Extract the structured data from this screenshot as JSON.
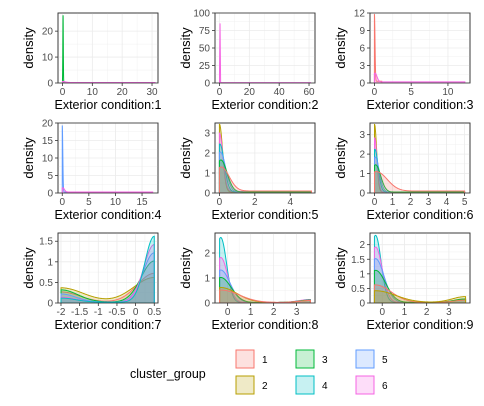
{
  "legend": {
    "title": "cluster_group",
    "items": [
      {
        "label": "1",
        "color": "#F8766D"
      },
      {
        "label": "2",
        "color": "#B79F00"
      },
      {
        "label": "3",
        "color": "#00BA38"
      },
      {
        "label": "4",
        "color": "#00BFC4"
      },
      {
        "label": "5",
        "color": "#619CFF"
      },
      {
        "label": "6",
        "color": "#F564E3"
      }
    ]
  },
  "chart_data": [
    {
      "type": "area",
      "xlabel": "Exterior condition:1",
      "ylabel": "density",
      "xlim": [
        -1.5,
        32
      ],
      "ylim": [
        0,
        27
      ],
      "xticks": [
        0,
        10,
        20,
        30
      ],
      "yticks": [
        0,
        10,
        20
      ],
      "grid": true,
      "series": [
        {
          "group": "3",
          "peak": 26,
          "x0": 0.2,
          "w": 0.08,
          "base": 0.1,
          "xmax": 1
        },
        {
          "group": "6",
          "peak": 0.4,
          "x0": 0,
          "w": 1,
          "base": 0.2,
          "xmax": 31
        }
      ]
    },
    {
      "type": "area",
      "xlabel": "Exterior condition:2",
      "ylabel": "density",
      "xlim": [
        -3,
        64
      ],
      "ylim": [
        0,
        100
      ],
      "xticks": [
        0,
        20,
        40,
        60
      ],
      "yticks": [
        0,
        25,
        50,
        75,
        100
      ],
      "grid": true,
      "series": [
        {
          "group": "6",
          "peak": 98,
          "x0": 0.3,
          "w": 0.15,
          "base": 0.5,
          "xmax": 61
        }
      ]
    },
    {
      "type": "area",
      "xlabel": "Exterior condition:3",
      "ylabel": "density",
      "xlim": [
        -0.6,
        13
      ],
      "ylim": [
        0,
        12
      ],
      "xticks": [
        0,
        5,
        10
      ],
      "yticks": [
        0,
        3,
        6,
        9,
        12
      ],
      "grid": true,
      "series": [
        {
          "group": "1",
          "peak": 11.5,
          "x0": 0,
          "w": 0.08,
          "base": 0.3,
          "xmax": 1
        },
        {
          "group": "6",
          "peak": 1.5,
          "x0": 0.1,
          "w": 0.25,
          "base": 0.2,
          "xmax": 12.3
        }
      ]
    },
    {
      "type": "area",
      "xlabel": "Exterior condition:4",
      "ylabel": "density",
      "xlim": [
        -0.8,
        18
      ],
      "ylim": [
        0,
        20
      ],
      "xticks": [
        0,
        5,
        10,
        15
      ],
      "yticks": [
        0,
        5,
        10,
        15,
        20
      ],
      "grid": true,
      "series": [
        {
          "group": "5",
          "peak": 19,
          "x0": 0,
          "w": 0.1,
          "base": 0.3,
          "xmax": 1
        },
        {
          "group": "6",
          "peak": 1.2,
          "x0": 0.1,
          "w": 0.3,
          "base": 0.3,
          "xmax": 17
        }
      ]
    },
    {
      "type": "area",
      "xlabel": "Exterior condition:5",
      "ylabel": "density",
      "xlim": [
        -0.25,
        5.4
      ],
      "ylim": [
        0,
        3.5
      ],
      "xticks": [
        0,
        2,
        4
      ],
      "yticks": [
        0,
        1,
        2,
        3
      ],
      "grid": true,
      "series": [
        {
          "group": "2",
          "peak": 3.4,
          "x0": 0,
          "w": 0.18,
          "base": 0.05,
          "xmax": 5.2
        },
        {
          "group": "6",
          "peak": 2.9,
          "x0": 0,
          "w": 0.2,
          "base": 0.08,
          "xmax": 5.2
        },
        {
          "group": "4",
          "peak": 2.4,
          "x0": 0.02,
          "w": 0.25,
          "base": 0.05,
          "xmax": 5.2
        },
        {
          "group": "5",
          "peak": 2.0,
          "x0": 0.05,
          "w": 0.3,
          "base": 0.05,
          "xmax": 5.2
        },
        {
          "group": "3",
          "peak": 1.6,
          "x0": 0.08,
          "w": 0.35,
          "base": 0.05,
          "xmax": 5.2
        },
        {
          "group": "1",
          "peak": 1.2,
          "x0": 0.1,
          "w": 0.45,
          "base": 0.1,
          "xmax": 5.2
        }
      ]
    },
    {
      "type": "area",
      "xlabel": "Exterior condition:6",
      "ylabel": "density",
      "xlim": [
        -0.25,
        5.3
      ],
      "ylim": [
        0,
        3.6
      ],
      "xticks": [
        0,
        1,
        2,
        3,
        4,
        5
      ],
      "yticks": [
        0,
        1,
        2,
        3
      ],
      "grid": true,
      "series": [
        {
          "group": "2",
          "peak": 3.5,
          "x0": 0,
          "w": 0.12,
          "base": 0.05,
          "xmax": 5
        },
        {
          "group": "6",
          "peak": 2.8,
          "x0": 0,
          "w": 0.14,
          "base": 0.05,
          "xmax": 5
        },
        {
          "group": "4",
          "peak": 2.2,
          "x0": 0.02,
          "w": 0.18,
          "base": 0.05,
          "xmax": 5
        },
        {
          "group": "5",
          "peak": 1.8,
          "x0": 0.04,
          "w": 0.22,
          "base": 0.05,
          "xmax": 5
        },
        {
          "group": "3",
          "peak": 1.4,
          "x0": 0.06,
          "w": 0.28,
          "base": 0.05,
          "xmax": 5
        },
        {
          "group": "1",
          "peak": 1.0,
          "x0": 0.1,
          "w": 0.6,
          "base": 0.1,
          "xmax": 5
        }
      ]
    },
    {
      "type": "area",
      "xlabel": "Exterior condition:7",
      "ylabel": "density",
      "xlim": [
        -2.08,
        0.6
      ],
      "ylim": [
        0,
        1.7
      ],
      "xticks": [
        -2.0,
        -1.5,
        -1.0,
        -0.5,
        0.0,
        0.5
      ],
      "yticks": [
        0.0,
        0.5,
        1.0,
        1.5
      ],
      "grid": true,
      "series": [
        {
          "group": "2",
          "peak": 0.6,
          "x0": 0.5,
          "w": 0.55,
          "lpeak": 0.35,
          "lw": 0.6,
          "base": 0.02,
          "xmin": -2.0,
          "xmax": 0.5
        },
        {
          "group": "1",
          "peak": 0.7,
          "x0": 0.5,
          "w": 0.45,
          "lpeak": 0.25,
          "lw": 0.5,
          "base": 0.02,
          "xmin": -2.0,
          "xmax": 0.5
        },
        {
          "group": "3",
          "peak": 1.0,
          "x0": 0.5,
          "w": 0.35,
          "lpeak": 0.3,
          "lw": 0.45,
          "base": 0.02,
          "xmin": -2.0,
          "xmax": 0.5
        },
        {
          "group": "5",
          "peak": 1.2,
          "x0": 0.5,
          "w": 0.3,
          "lpeak": 0.2,
          "lw": 0.4,
          "base": 0.02,
          "xmin": -2.0,
          "xmax": 0.5
        },
        {
          "group": "6",
          "peak": 1.4,
          "x0": 0.5,
          "w": 0.28,
          "lpeak": 0.12,
          "lw": 0.4,
          "base": 0.02,
          "xmin": -2.0,
          "xmax": 0.5
        },
        {
          "group": "4",
          "peak": 1.6,
          "x0": 0.5,
          "w": 0.25,
          "lpeak": 0.1,
          "lw": 0.4,
          "base": 0.02,
          "xmin": -2.0,
          "xmax": 0.5
        }
      ]
    },
    {
      "type": "area",
      "xlabel": "Exterior condition:8",
      "ylabel": "density",
      "xlim": [
        -0.55,
        3.8
      ],
      "ylim": [
        0,
        2.8
      ],
      "xticks": [
        0,
        1,
        2,
        3
      ],
      "yticks": [
        0,
        1,
        2
      ],
      "grid": true,
      "series": [
        {
          "group": "4",
          "peak": 2.6,
          "x0": -0.3,
          "w": 0.25,
          "base": 0.02,
          "rpeak": 0.1,
          "rw": 0.5,
          "xmin": -0.35,
          "xmax": 3.6
        },
        {
          "group": "6",
          "peak": 1.8,
          "x0": -0.3,
          "w": 0.3,
          "base": 0.02,
          "rpeak": 0.12,
          "rw": 0.5,
          "xmin": -0.35,
          "xmax": 3.6
        },
        {
          "group": "5",
          "peak": 1.3,
          "x0": -0.3,
          "w": 0.4,
          "base": 0.02,
          "rpeak": 0.1,
          "rw": 0.5,
          "xmin": -0.35,
          "xmax": 3.6
        },
        {
          "group": "3",
          "peak": 1.0,
          "x0": -0.3,
          "w": 0.45,
          "base": 0.02,
          "rpeak": 0.1,
          "rw": 0.5,
          "xmin": -0.35,
          "xmax": 3.6
        },
        {
          "group": "2",
          "peak": 0.6,
          "x0": -0.3,
          "w": 0.7,
          "base": 0.02,
          "rpeak": 0.08,
          "rw": 0.5,
          "xmin": -0.35,
          "xmax": 3.6
        },
        {
          "group": "1",
          "peak": 0.5,
          "x0": -0.3,
          "w": 0.8,
          "base": 0.02,
          "rpeak": 0.08,
          "rw": 0.5,
          "xmin": -0.35,
          "xmax": 3.6
        }
      ]
    },
    {
      "type": "area",
      "xlabel": "Exterior condition:9",
      "ylabel": "density",
      "xlim": [
        -0.55,
        3.95
      ],
      "ylim": [
        0,
        2.4
      ],
      "xticks": [
        0,
        1,
        2,
        3
      ],
      "yticks": [
        0.0,
        0.5,
        1.0,
        1.5,
        2.0
      ],
      "grid": true,
      "series": [
        {
          "group": "4",
          "peak": 2.3,
          "x0": -0.3,
          "w": 0.25,
          "base": 0.02,
          "rpeak": 0.1,
          "rw": 0.5,
          "xmin": -0.35,
          "xmax": 3.75
        },
        {
          "group": "6",
          "peak": 1.9,
          "x0": -0.3,
          "w": 0.3,
          "base": 0.02,
          "rpeak": 0.12,
          "rw": 0.5,
          "xmin": -0.35,
          "xmax": 3.75
        },
        {
          "group": "5",
          "peak": 1.5,
          "x0": -0.3,
          "w": 0.38,
          "base": 0.02,
          "rpeak": 0.1,
          "rw": 0.5,
          "xmin": -0.35,
          "xmax": 3.75
        },
        {
          "group": "3",
          "peak": 1.1,
          "x0": -0.3,
          "w": 0.45,
          "base": 0.02,
          "rpeak": 0.12,
          "rw": 0.5,
          "xmin": -0.35,
          "xmax": 3.75
        },
        {
          "group": "1",
          "peak": 0.6,
          "x0": -0.3,
          "w": 0.7,
          "base": 0.02,
          "rpeak": 0.08,
          "rw": 0.5,
          "xmin": -0.35,
          "xmax": 3.75
        },
        {
          "group": "2",
          "peak": 0.4,
          "x0": -0.3,
          "w": 0.9,
          "base": 0.02,
          "rpeak": 0.2,
          "rw": 0.6,
          "xmin": -0.35,
          "xmax": 3.75
        }
      ]
    }
  ]
}
